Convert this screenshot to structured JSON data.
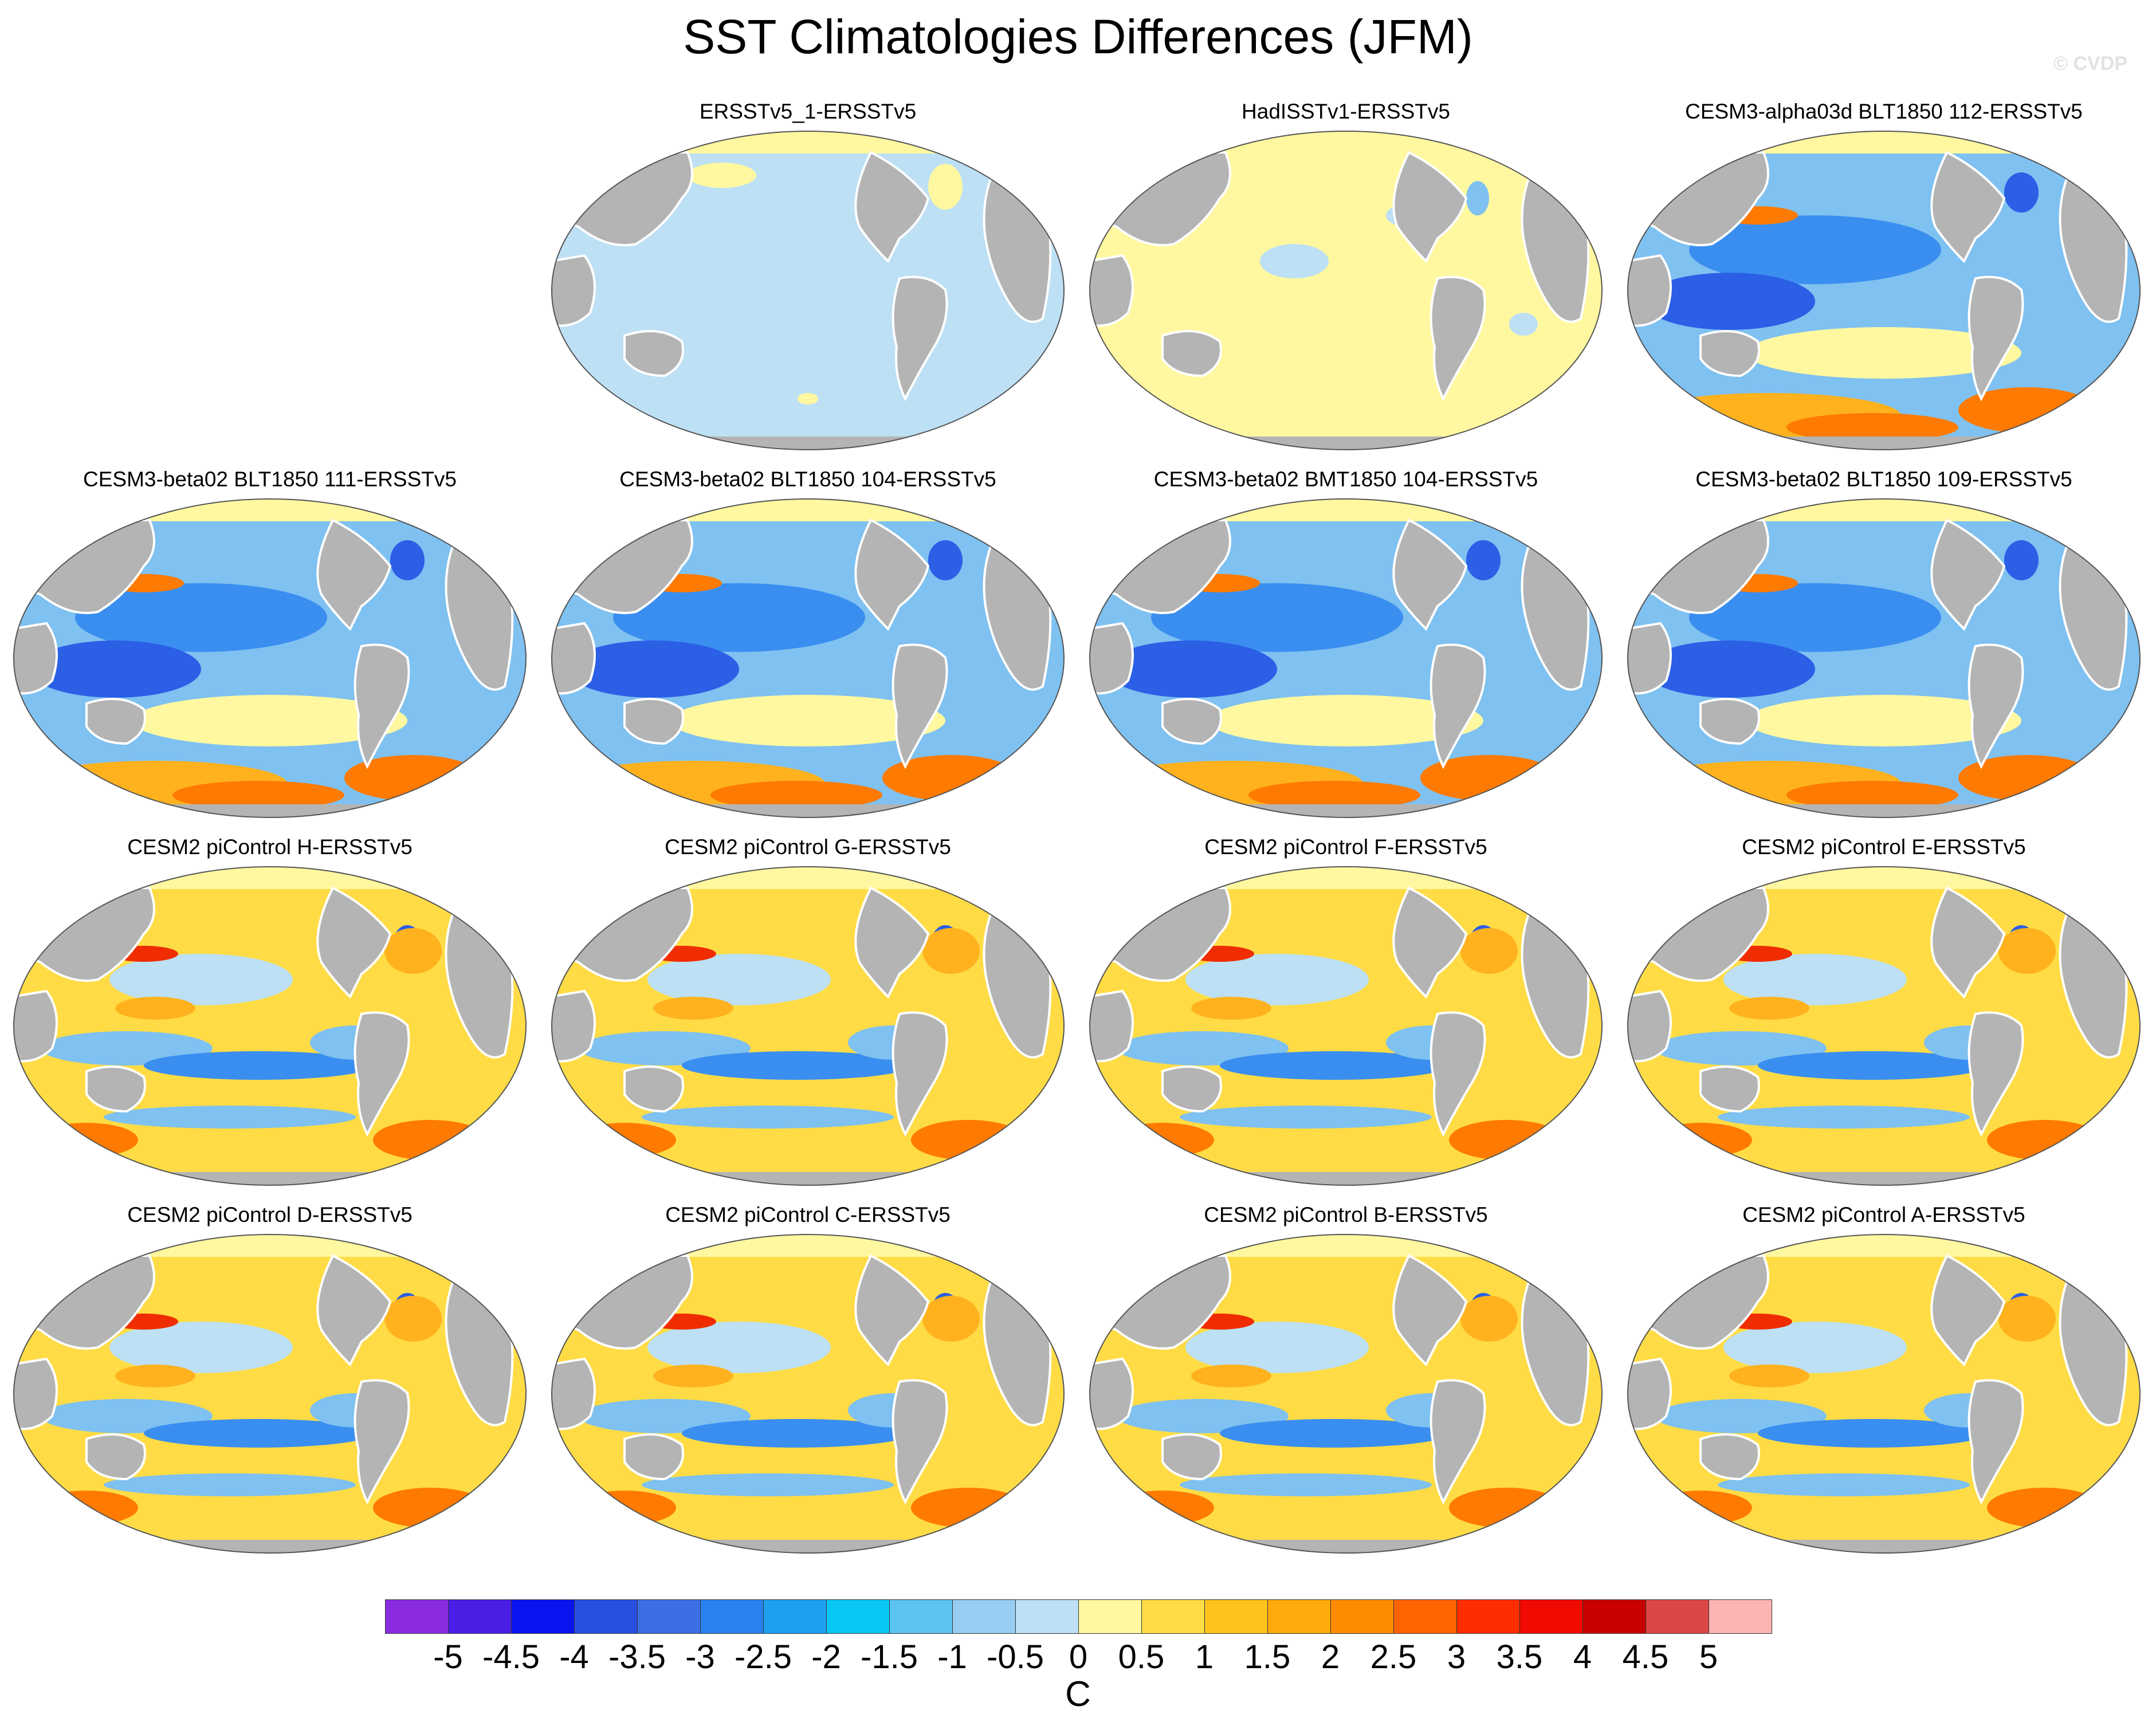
{
  "title": "SST Climatologies Differences (JFM)",
  "watermark": "© CVDP",
  "colors": {
    "land": "#b4b4b4",
    "coast": "#ffffff",
    "outline": "#555555"
  },
  "panels": [
    {
      "title": "ERSSTv5_1-ERSSTv5",
      "style": "uniform-neg"
    },
    {
      "title": "HadISSTv1-ERSSTv5",
      "style": "uniform-pos"
    },
    {
      "title": "CESM3-alpha03d BLT1850 112-ERSSTv5",
      "style": "cold"
    },
    {
      "title": "CESM3-beta02 BLT1850 111-ERSSTv5",
      "style": "cold"
    },
    {
      "title": "CESM3-beta02 BLT1850 104-ERSSTv5",
      "style": "cold"
    },
    {
      "title": "CESM3-beta02 BMT1850 104-ERSSTv5",
      "style": "cold"
    },
    {
      "title": "CESM3-beta02 BLT1850 109-ERSSTv5",
      "style": "cold"
    },
    {
      "title": "CESM2 piControl H-ERSSTv5",
      "style": "warm"
    },
    {
      "title": "CESM2 piControl G-ERSSTv5",
      "style": "warm"
    },
    {
      "title": "CESM2 piControl F-ERSSTv5",
      "style": "warm"
    },
    {
      "title": "CESM2 piControl E-ERSSTv5",
      "style": "warm"
    },
    {
      "title": "CESM2 piControl D-ERSSTv5",
      "style": "warm"
    },
    {
      "title": "CESM2 piControl C-ERSSTv5",
      "style": "warm"
    },
    {
      "title": "CESM2 piControl B-ERSSTv5",
      "style": "warm"
    },
    {
      "title": "CESM2 piControl A-ERSSTv5",
      "style": "warm"
    }
  ],
  "colorbar": {
    "units": "C",
    "labels": [
      "-5",
      "-4.5",
      "-4",
      "-3.5",
      "-3",
      "-2.5",
      "-2",
      "-1.5",
      "-1",
      "-0.5",
      "0",
      "0.5",
      "1",
      "1.5",
      "2",
      "2.5",
      "3",
      "3.5",
      "4",
      "4.5",
      "5"
    ],
    "colors": [
      "#8a2be2",
      "#4b1ee6",
      "#0a14f0",
      "#2850e0",
      "#3c6ee6",
      "#2882f0",
      "#1ea0f0",
      "#0ac8f5",
      "#5ac3f0",
      "#96cdf0",
      "#bde0f5",
      "#fff8a0",
      "#ffdc46",
      "#ffc31e",
      "#ffaa0a",
      "#ff8c00",
      "#ff6400",
      "#ff2d00",
      "#f00a00",
      "#c80000",
      "#dc4646",
      "#ffb4b4"
    ]
  }
}
